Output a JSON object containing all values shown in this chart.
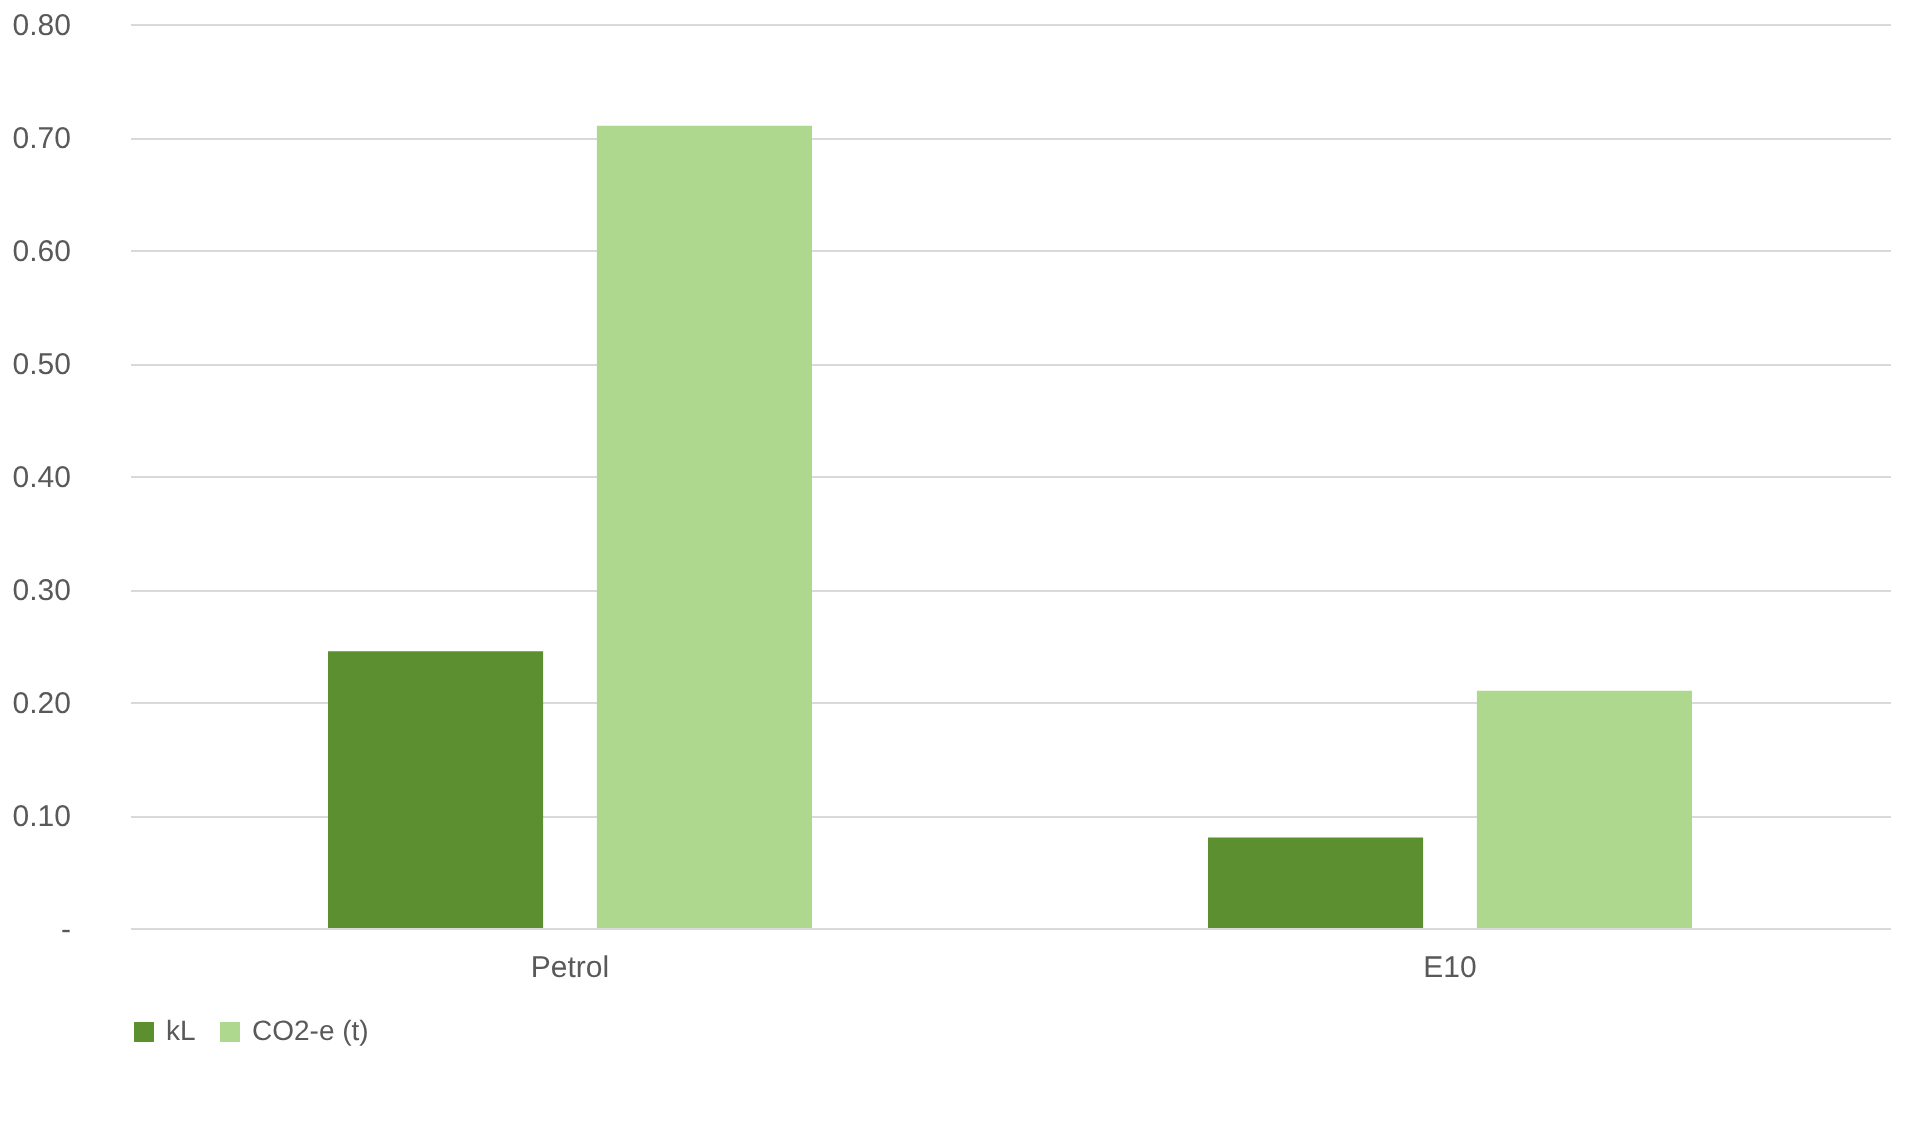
{
  "chart_data": {
    "type": "bar",
    "categories": [
      "Petrol",
      "E10"
    ],
    "series": [
      {
        "name": "kL",
        "color": "#5b8f2f",
        "values": [
          0.245,
          0.08
        ]
      },
      {
        "name": "CO2-e (t)",
        "color": "#aed88d",
        "values": [
          0.71,
          0.21
        ]
      }
    ],
    "ylim": [
      0,
      0.8
    ],
    "yticks": [
      {
        "value": 0,
        "label": "-"
      },
      {
        "value": 0.1,
        "label": "0.10"
      },
      {
        "value": 0.2,
        "label": "0.20"
      },
      {
        "value": 0.3,
        "label": "0.30"
      },
      {
        "value": 0.4,
        "label": "0.40"
      },
      {
        "value": 0.5,
        "label": "0.50"
      },
      {
        "value": 0.6,
        "label": "0.60"
      },
      {
        "value": 0.7,
        "label": "0.70"
      },
      {
        "value": 0.8,
        "label": "0.80"
      }
    ],
    "grid": "y",
    "legend": "bottom"
  }
}
